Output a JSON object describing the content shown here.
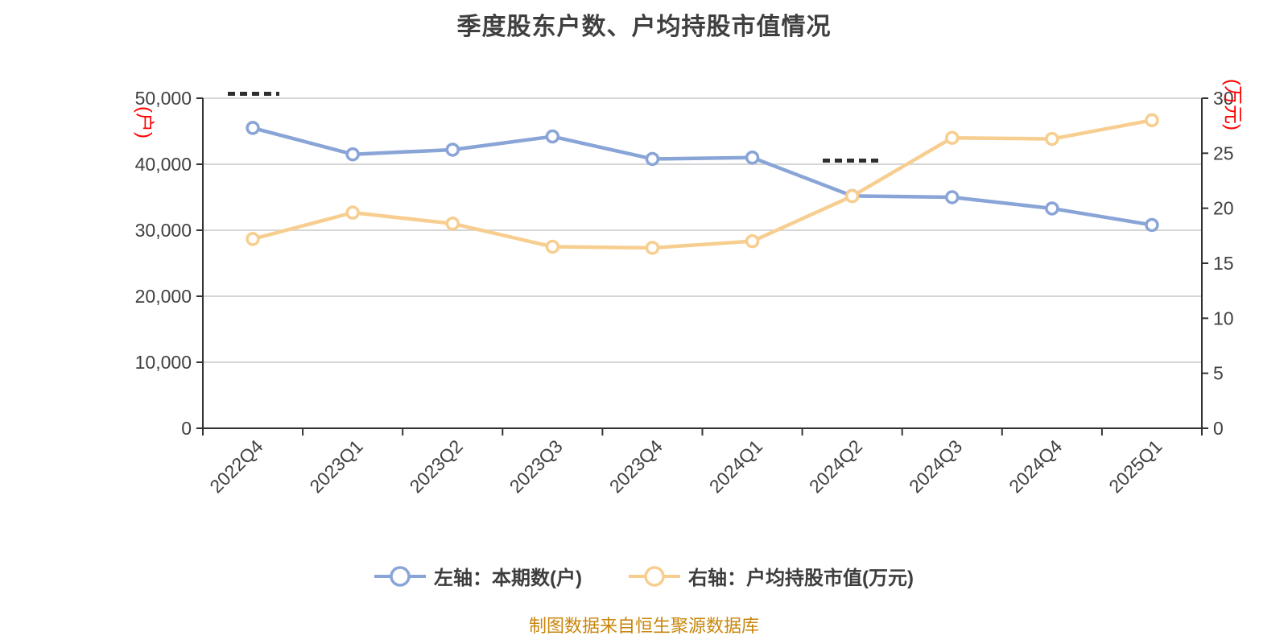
{
  "title": "季度股东户数、户均持股市值情况",
  "caption": "制图数据来自恒生聚源数据库",
  "legend": {
    "items": [
      {
        "label": "左轴：本期数(户)"
      },
      {
        "label": "右轴：户均持股市值(万元)"
      }
    ]
  },
  "chart_data": {
    "type": "line",
    "categories": [
      "2022Q4",
      "2023Q1",
      "2023Q2",
      "2023Q3",
      "2023Q4",
      "2024Q1",
      "2024Q2",
      "2024Q3",
      "2024Q4",
      "2025Q1"
    ],
    "series": [
      {
        "name": "左轴：本期数(户)",
        "axis": "left",
        "color": "#89A4D6",
        "values": [
          45500,
          41500,
          42200,
          44200,
          40800,
          41000,
          35200,
          35000,
          33300,
          30800
        ]
      },
      {
        "name": "右轴：户均持股市值(万元)",
        "axis": "right",
        "color": "#F7CE8F",
        "values": [
          17.2,
          19.6,
          18.6,
          16.5,
          16.4,
          17.0,
          21.1,
          26.4,
          26.3,
          28.0
        ]
      }
    ],
    "left_axis": {
      "min": 0,
      "max": 50000,
      "tick_labels": [
        "0",
        "10,000",
        "20,000",
        "30,000",
        "40,000",
        "50,000"
      ],
      "unit": "(户)",
      "unit_color": "#FF0000"
    },
    "right_axis": {
      "min": 0,
      "max": 30,
      "tick_labels": [
        "0",
        "5",
        "10",
        "15",
        "20",
        "25",
        "30"
      ],
      "unit": "(万元)",
      "unit_color": "#FF0000"
    },
    "xlabel": "",
    "ylabel_left": "(户)",
    "ylabel_right": "(万元)",
    "grid": true,
    "legend_position": "bottom",
    "style": {
      "grid_color": "#D6D6D6",
      "axis_color": "#333333",
      "text_color": "#404040",
      "title_color": "#3F3F3F",
      "caption_color": "#C8860B",
      "background": "#FFFFFF"
    }
  }
}
